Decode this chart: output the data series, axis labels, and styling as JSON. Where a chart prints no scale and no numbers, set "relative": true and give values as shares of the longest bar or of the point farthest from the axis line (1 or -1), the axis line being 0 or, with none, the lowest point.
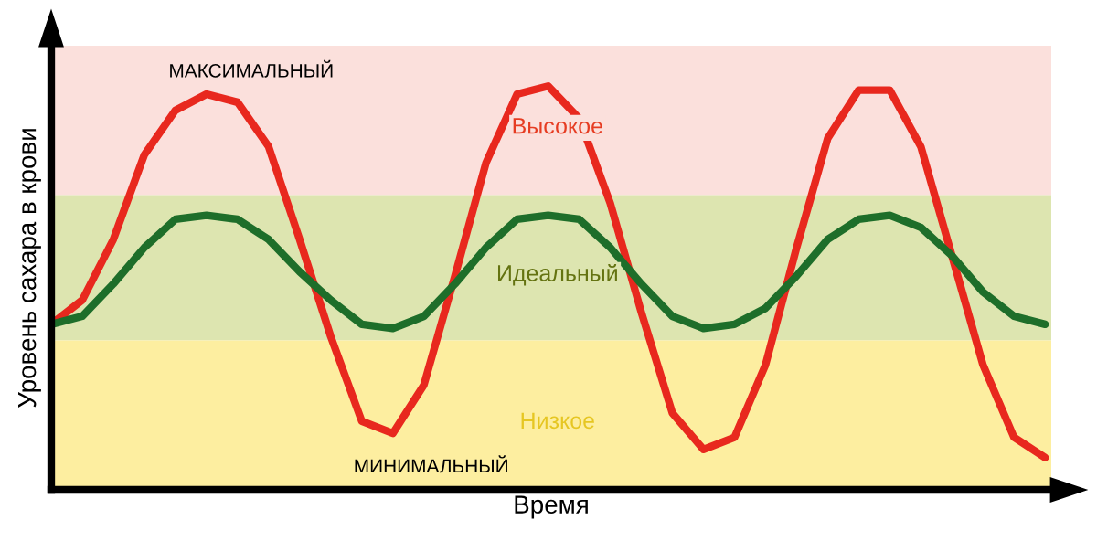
{
  "chart_data": {
    "type": "line",
    "relative": true,
    "xlabel": "Время",
    "ylabel": "Уровень сахара в крови",
    "categories": [
      null,
      null,
      null,
      null,
      null,
      null,
      null,
      null,
      null,
      null,
      null,
      null,
      null,
      null,
      null,
      null,
      null,
      null,
      null,
      null,
      null,
      null,
      null,
      null,
      null,
      null,
      null,
      null,
      null,
      null,
      null,
      null,
      null
    ],
    "series": [
      {
        "color": "#e8281e",
        "values": [
          0.41,
          0.47,
          0.62,
          0.83,
          0.94,
          0.98,
          0.96,
          0.85,
          0.62,
          0.38,
          0.17,
          0.14,
          0.26,
          0.53,
          0.81,
          0.98,
          1,
          0.92,
          0.71,
          0.44,
          0.19,
          0.1,
          0.13,
          0.31,
          0.6,
          0.87,
          0.99,
          0.99,
          0.85,
          0.58,
          0.31,
          0.13,
          0.08
        ]
      },
      {
        "color": "#1e6e2a",
        "values": [
          0.41,
          0.43,
          0.51,
          0.6,
          0.67,
          0.68,
          0.67,
          0.62,
          0.54,
          0.47,
          0.41,
          0.4,
          0.43,
          0.51,
          0.6,
          0.67,
          0.68,
          0.67,
          0.6,
          0.51,
          0.43,
          0.4,
          0.41,
          0.45,
          0.53,
          0.62,
          0.67,
          0.68,
          0.65,
          0.58,
          0.49,
          0.43,
          0.41
        ]
      }
    ],
    "bands": [
      {
        "axis": "y",
        "from": 0.73,
        "to": 1.1,
        "label": "Высокое",
        "color": "#fbe0dc"
      },
      {
        "axis": "y",
        "from": 0.37,
        "to": 0.73,
        "label": "Идеальный",
        "color": "#dde5b0"
      },
      {
        "axis": "y",
        "from": 0,
        "to": 0.37,
        "label": "Низкое",
        "color": "#fdeea0"
      }
    ],
    "annotations": [
      "МАКСИМАЛЬНЫЙ",
      "МИНИМАЛЬНЫЙ"
    ],
    "legend": false,
    "marker": "none",
    "line_style": "solid"
  }
}
